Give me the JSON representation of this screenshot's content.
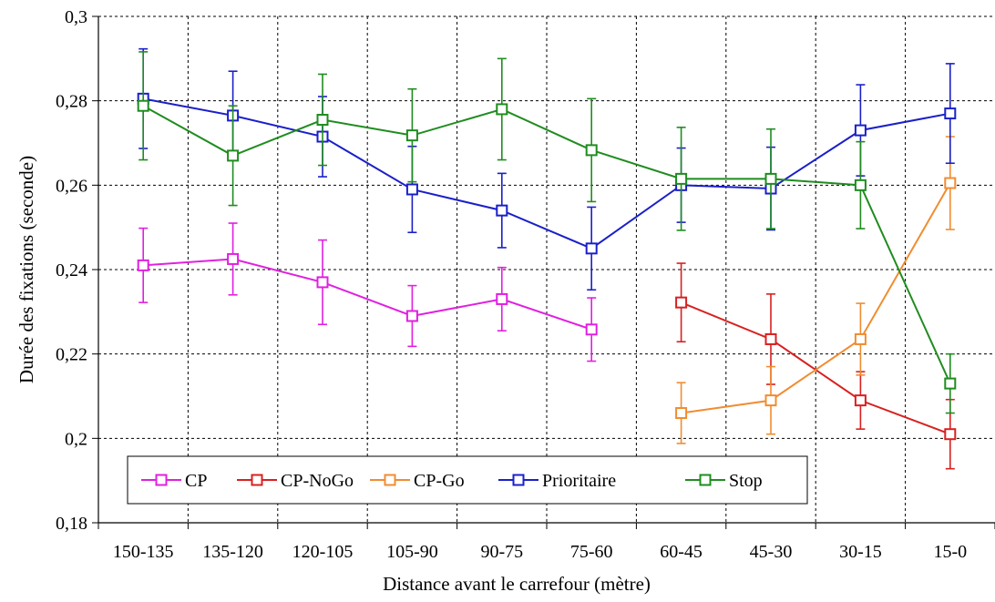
{
  "chart_data": {
    "type": "line",
    "xlabel": "Distance avant le carrefour (mètre)",
    "ylabel": "Durée des fixations (seconde)",
    "ylim": [
      0.18,
      0.3
    ],
    "yticks": [
      "0,18",
      "0,2",
      "0,22",
      "0,24",
      "0,26",
      "0,28",
      "0,3"
    ],
    "yticks_values": [
      0.18,
      0.2,
      0.22,
      0.24,
      0.26,
      0.28,
      0.3
    ],
    "categories": [
      "150-135",
      "135-120",
      "120-105",
      "105-90",
      "90-75",
      "75-60",
      "60-45",
      "45-30",
      "30-15",
      "15-0"
    ],
    "grid": true,
    "legend_position": "bottom-left",
    "series": [
      {
        "name": "CP",
        "color": "#e020e0",
        "values": [
          0.241,
          0.2425,
          0.237,
          0.229,
          0.233,
          0.2258,
          null,
          null,
          null,
          null
        ],
        "error": [
          0.0088,
          0.0085,
          0.01,
          0.0072,
          0.0075,
          0.0075,
          null,
          null,
          null,
          null
        ]
      },
      {
        "name": "CP-NoGo",
        "color": "#d82020",
        "values": [
          null,
          null,
          null,
          null,
          null,
          null,
          0.2322,
          0.2235,
          0.209,
          0.201
        ],
        "error": [
          null,
          null,
          null,
          null,
          null,
          null,
          0.0093,
          0.0107,
          0.0068,
          0.0082
        ]
      },
      {
        "name": "CP-Go",
        "color": "#f08c30",
        "values": [
          null,
          null,
          null,
          null,
          null,
          null,
          0.206,
          0.209,
          0.2235,
          0.2605
        ],
        "error": [
          null,
          null,
          null,
          null,
          null,
          null,
          0.0072,
          0.008,
          0.0085,
          0.011
        ]
      },
      {
        "name": "Prioritaire",
        "color": "#1a20c8",
        "values": [
          0.2805,
          0.2765,
          0.2715,
          0.259,
          0.254,
          0.245,
          0.26,
          0.2592,
          0.273,
          0.277
        ],
        "error": [
          0.0118,
          0.0105,
          0.0095,
          0.0102,
          0.0088,
          0.0098,
          0.0088,
          0.0098,
          0.0108,
          0.0118
        ]
      },
      {
        "name": "Stop",
        "color": "#1f8c1f",
        "values": [
          0.2788,
          0.267,
          0.2755,
          0.2718,
          0.278,
          0.2683,
          0.2615,
          0.2615,
          0.26,
          0.213
        ],
        "error": [
          0.0128,
          0.0118,
          0.0108,
          0.011,
          0.012,
          0.0122,
          0.0122,
          0.0118,
          0.0103,
          0.007
        ]
      }
    ]
  }
}
